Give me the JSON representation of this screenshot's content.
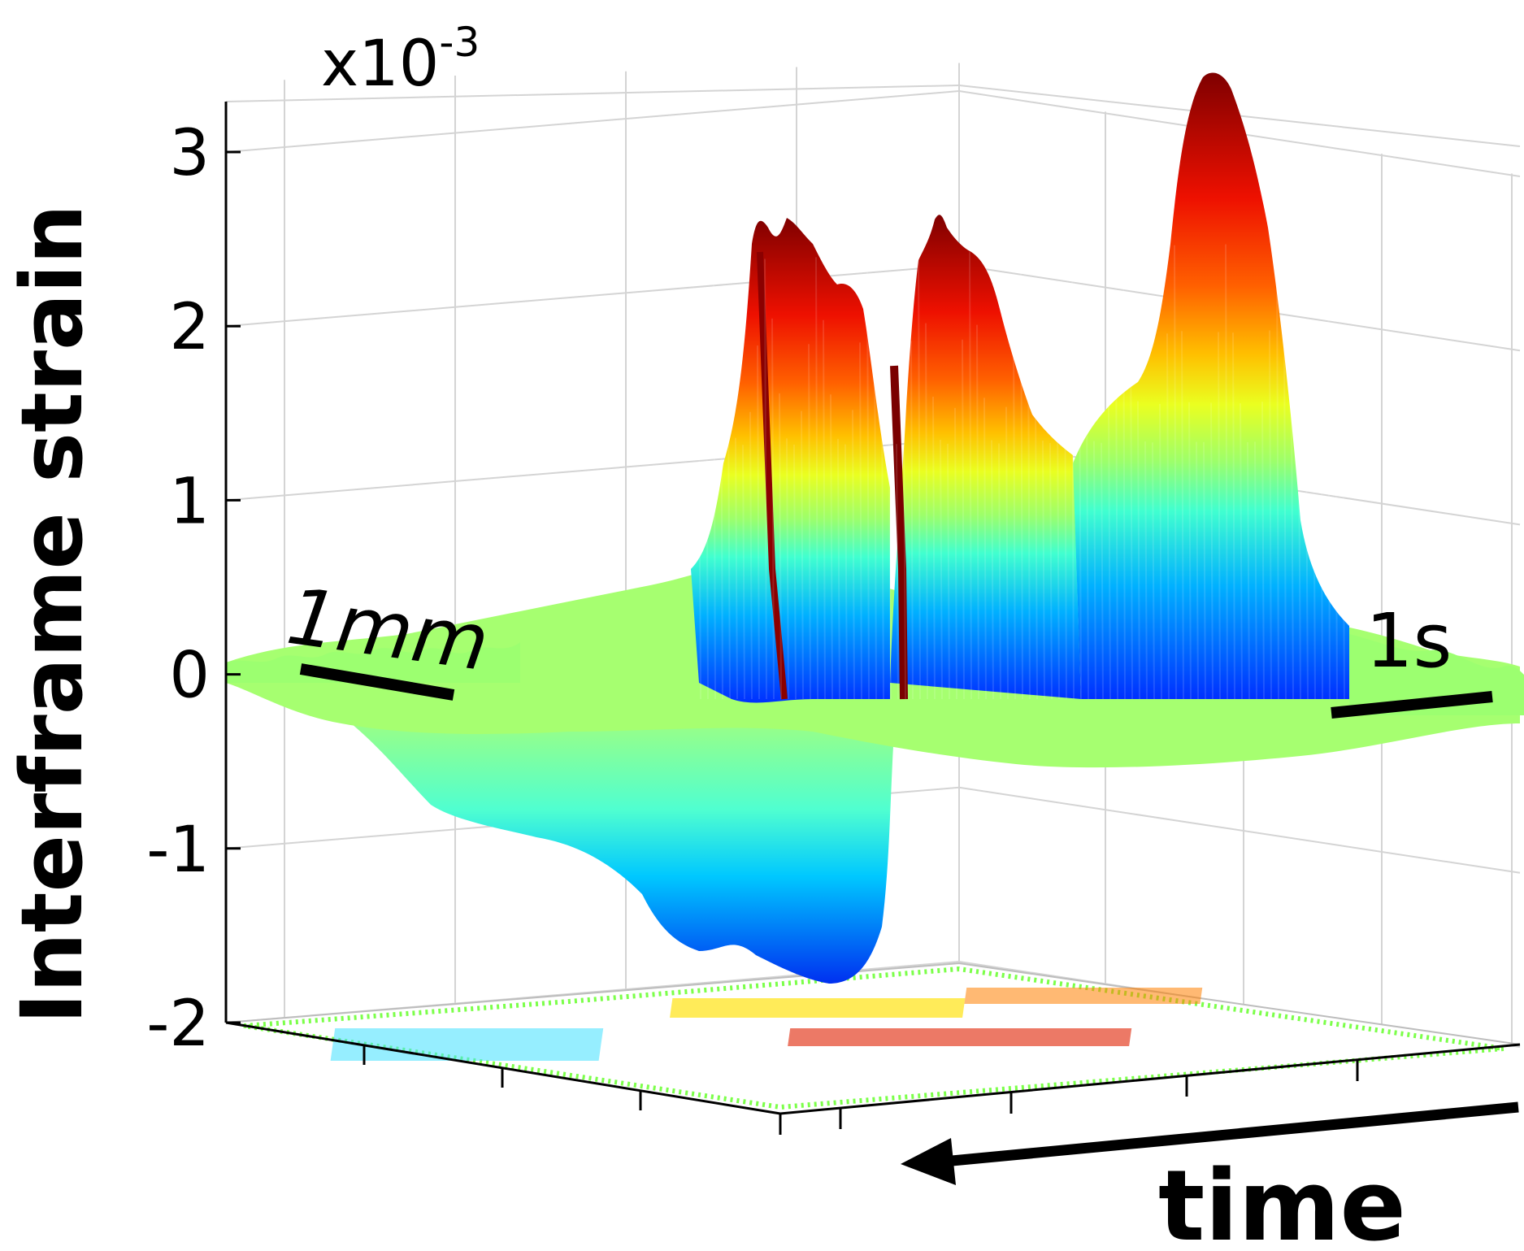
{
  "chart_data": {
    "type": "surface3d",
    "ylabel": "Interframe strain",
    "exponent_label": "x10",
    "exponent_power": "-3",
    "zlim": [
      -2,
      3.3
    ],
    "zticks": [
      "3",
      "2",
      "1",
      "0",
      "-1",
      "-2"
    ],
    "ztick_values": [
      3,
      2,
      1,
      0,
      -1,
      -2
    ],
    "grid": true,
    "colormap": "jet",
    "scale_bars": {
      "depth": "1mm",
      "time": "1s"
    },
    "time_axis_label": "time",
    "time_arrow_direction": "right-to-left",
    "features": [
      {
        "name": "positive-peak-1",
        "time_fraction": 0.42,
        "peak_value": 2.6
      },
      {
        "name": "positive-peak-2",
        "time_fraction": 0.53,
        "peak_value": 2.65
      },
      {
        "name": "positive-peak-3",
        "time_fraction": 0.78,
        "peak_value": 3.4
      },
      {
        "name": "negative-trough",
        "time_fraction": 0.38,
        "peak_value": -1.8
      }
    ]
  },
  "colors": {
    "axis": "#000000",
    "grid": "#d4d4d4",
    "scale_bar": "#000000",
    "colormap_stops": [
      "#00007f",
      "#0040ff",
      "#00bfff",
      "#40ffbf",
      "#bfff40",
      "#ffff00",
      "#ff8000",
      "#ff1000",
      "#7f0000"
    ]
  }
}
